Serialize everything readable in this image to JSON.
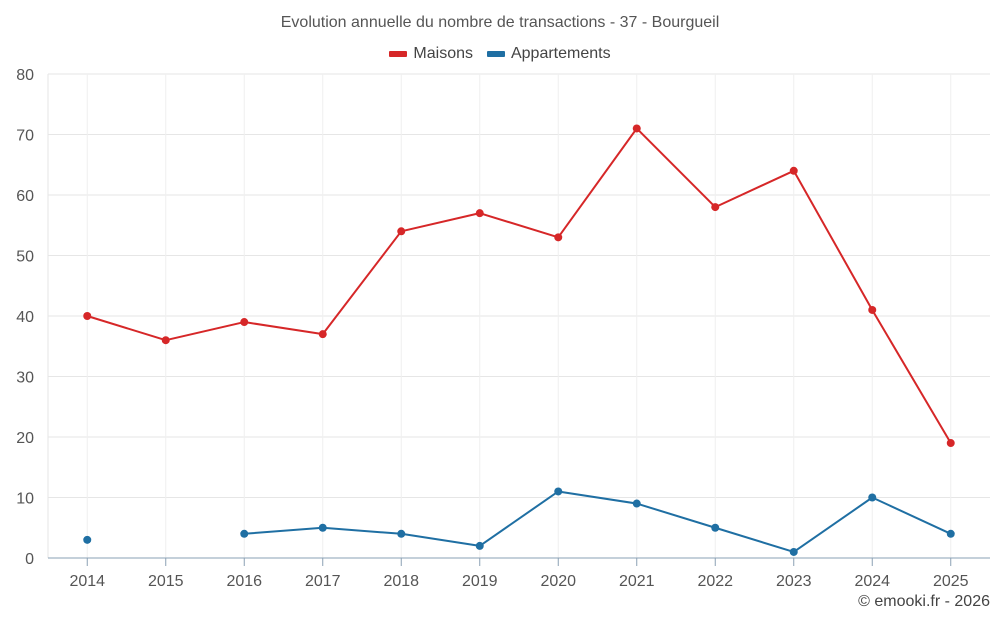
{
  "chart_data": {
    "type": "line",
    "title": "Evolution annuelle du nombre de transactions - 37 - Bourgueil",
    "categories": [
      "2014",
      "2015",
      "2016",
      "2017",
      "2018",
      "2019",
      "2020",
      "2021",
      "2022",
      "2023",
      "2024",
      "2025"
    ],
    "series": [
      {
        "name": "Maisons",
        "color": "#d62728",
        "values": [
          40,
          36,
          39,
          37,
          54,
          57,
          53,
          71,
          58,
          64,
          41,
          19
        ]
      },
      {
        "name": "Appartements",
        "color": "#1f6fa3",
        "values": [
          3,
          null,
          4,
          5,
          4,
          2,
          11,
          9,
          5,
          1,
          10,
          4
        ]
      }
    ],
    "yticks": [
      0,
      10,
      20,
      30,
      40,
      50,
      60,
      70,
      80
    ],
    "ylim": [
      0,
      80
    ],
    "xlabel": "",
    "ylabel": "",
    "grid": true,
    "legend": "top-center"
  },
  "credit": "© emooki.fr - 2026"
}
